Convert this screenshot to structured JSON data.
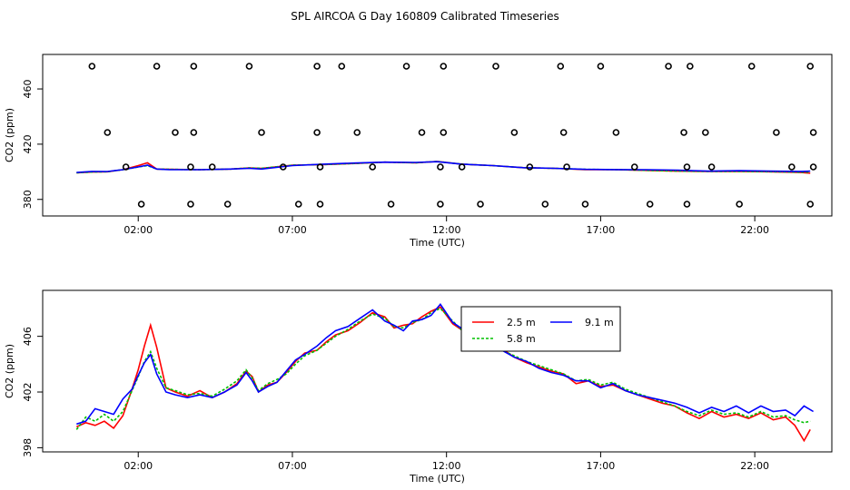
{
  "figure_title": "SPL AIRCOA G  Day 160809  Calibrated Timeseries",
  "chart_data": [
    {
      "type": "line",
      "panel": "top",
      "title": "",
      "xlabel": "Time (UTC)",
      "ylabel": "CO2 (ppm)",
      "xlim": [
        -1.1,
        24.5
      ],
      "ylim": [
        368,
        485
      ],
      "x_ticks": [
        2,
        7,
        12,
        17,
        22
      ],
      "x_tick_labels": [
        "02:00",
        "07:00",
        "12:00",
        "17:00",
        "22:00"
      ],
      "y_ticks": [
        380,
        420,
        460
      ],
      "y_tick_labels": [
        "380",
        "420",
        "460"
      ],
      "grid": false,
      "colors": {
        "2.5 m": "#ff0000",
        "5.8 m": "#00c000",
        "9.1 m": "#0000ff",
        "points": "#000000"
      },
      "series": [
        {
          "name": "2.5 m",
          "x": [
            0.0,
            0.5,
            1.0,
            1.5,
            2.0,
            2.3,
            2.6,
            3.0,
            4.0,
            5.0,
            5.6,
            6.0,
            7.0,
            8.0,
            9.0,
            10.0,
            11.0,
            11.7,
            12.5,
            13.5,
            14.5,
            15.5,
            16.5,
            17.5,
            18.5,
            19.5,
            20.5,
            21.5,
            22.5,
            23.5,
            23.8
          ],
          "y": [
            399.2,
            399.8,
            400.0,
            401.5,
            404.5,
            406.5,
            402.0,
            401.8,
            401.5,
            402.0,
            402.8,
            402.5,
            404.8,
            405.2,
            406.0,
            407.0,
            406.5,
            407.5,
            405.5,
            404.5,
            403.0,
            402.5,
            401.5,
            401.5,
            401.0,
            400.5,
            400.2,
            400.3,
            400.0,
            399.5,
            399.0
          ]
        },
        {
          "name": "5.8 m",
          "x": [
            0.0,
            0.5,
            1.0,
            1.5,
            2.0,
            2.3,
            2.6,
            3.0,
            4.0,
            5.0,
            5.6,
            6.0,
            7.0,
            8.0,
            9.0,
            10.0,
            11.0,
            11.7,
            12.5,
            13.5,
            14.5,
            15.5,
            16.5,
            17.5,
            18.5,
            19.5,
            20.5,
            21.5,
            22.5,
            23.5,
            23.8
          ],
          "y": [
            399.2,
            399.8,
            400.0,
            401.5,
            403.5,
            404.5,
            402.0,
            401.8,
            401.5,
            402.0,
            402.8,
            402.5,
            404.8,
            405.2,
            406.0,
            407.0,
            406.5,
            407.5,
            405.5,
            404.5,
            403.0,
            402.5,
            401.8,
            401.6,
            401.0,
            400.5,
            400.3,
            400.3,
            400.0,
            399.7,
            399.8
          ]
        },
        {
          "name": "9.1 m",
          "x": [
            0.0,
            0.5,
            1.0,
            1.5,
            2.0,
            2.3,
            2.6,
            3.0,
            4.0,
            5.0,
            5.6,
            6.0,
            7.0,
            8.0,
            9.0,
            10.0,
            11.0,
            11.7,
            12.5,
            13.5,
            14.5,
            15.5,
            16.5,
            17.5,
            18.5,
            19.5,
            20.5,
            21.5,
            22.5,
            23.5,
            23.8
          ],
          "y": [
            399.5,
            400.3,
            400.2,
            401.5,
            403.5,
            404.8,
            402.0,
            401.5,
            401.5,
            402.0,
            402.5,
            402.0,
            404.5,
            405.5,
            406.3,
            407.0,
            406.8,
            407.3,
            405.5,
            404.5,
            403.0,
            402.5,
            401.8,
            401.6,
            401.5,
            401.2,
            400.5,
            400.8,
            400.5,
            400.3,
            400.5
          ]
        }
      ],
      "points": {
        "x": [
          0.5,
          1.0,
          1.6,
          2.1,
          2.6,
          3.2,
          3.7,
          3.7,
          3.8,
          3.8,
          4.4,
          4.9,
          5.6,
          6.0,
          6.7,
          7.2,
          7.8,
          7.8,
          7.9,
          7.9,
          8.6,
          9.1,
          9.6,
          10.2,
          10.7,
          11.2,
          11.8,
          11.8,
          11.9,
          11.9,
          12.5,
          13.1,
          13.6,
          14.2,
          14.7,
          15.2,
          15.7,
          15.8,
          15.9,
          16.5,
          17.0,
          17.5,
          18.1,
          18.6,
          19.2,
          19.7,
          19.8,
          19.8,
          19.9,
          20.4,
          20.6,
          21.5,
          21.9,
          22.7,
          23.2,
          23.8,
          23.8,
          23.9,
          23.9
        ]
      }
    },
    {
      "type": "line",
      "panel": "bottom",
      "title": "",
      "xlabel": "Time (UTC)",
      "ylabel": "CO2 (ppm)",
      "xlim": [
        -1.1,
        24.5
      ],
      "ylim": [
        397.7,
        409.3
      ],
      "x_ticks": [
        2,
        7,
        12,
        17,
        22
      ],
      "x_tick_labels": [
        "02:00",
        "07:00",
        "12:00",
        "17:00",
        "22:00"
      ],
      "y_ticks": [
        398,
        402,
        406
      ],
      "y_tick_labels": [
        "398",
        "402",
        "406"
      ],
      "grid": false,
      "legend": {
        "position": "top-right",
        "entries": [
          "2.5 m",
          "5.8 m",
          "9.1 m"
        ]
      },
      "colors": {
        "2.5 m": "#ff0000",
        "5.8 m": "#00c000",
        "9.1 m": "#0000ff"
      },
      "series": [
        {
          "name": "2.5 m",
          "x": [
            0.0,
            0.3,
            0.6,
            0.9,
            1.2,
            1.5,
            1.8,
            2.0,
            2.2,
            2.4,
            2.6,
            2.9,
            3.2,
            3.6,
            4.0,
            4.4,
            4.8,
            5.2,
            5.5,
            5.7,
            5.9,
            6.2,
            6.5,
            6.8,
            7.1,
            7.4,
            7.8,
            8.1,
            8.4,
            8.8,
            9.2,
            9.6,
            10.0,
            10.3,
            10.6,
            10.9,
            11.2,
            11.5,
            11.8,
            12.2,
            12.6,
            13.0,
            13.4,
            13.8,
            14.2,
            14.6,
            15.0,
            15.4,
            15.8,
            16.2,
            16.6,
            17.0,
            17.4,
            17.8,
            18.2,
            18.6,
            19.0,
            19.4,
            19.8,
            20.2,
            20.6,
            21.0,
            21.4,
            21.8,
            22.2,
            22.6,
            23.0,
            23.3,
            23.6,
            23.8
          ],
          "y": [
            399.5,
            399.8,
            399.6,
            399.9,
            399.4,
            400.3,
            402.2,
            403.6,
            405.3,
            406.8,
            405.2,
            402.3,
            402.0,
            401.7,
            402.1,
            401.6,
            402.0,
            402.6,
            403.5,
            403.1,
            402.0,
            402.5,
            402.7,
            403.4,
            404.2,
            404.8,
            405.0,
            405.6,
            406.1,
            406.4,
            407.0,
            407.7,
            407.4,
            406.6,
            406.8,
            406.9,
            407.4,
            407.8,
            408.1,
            406.9,
            406.3,
            405.9,
            405.4,
            405.1,
            404.5,
            404.1,
            403.8,
            403.5,
            403.3,
            402.6,
            402.8,
            402.4,
            402.5,
            402.1,
            401.8,
            401.5,
            401.2,
            401.0,
            400.5,
            400.1,
            400.6,
            400.2,
            400.4,
            400.1,
            400.5,
            400.0,
            400.2,
            399.6,
            398.5,
            399.3
          ]
        },
        {
          "name": "5.8 m",
          "x": [
            0.0,
            0.3,
            0.6,
            0.9,
            1.2,
            1.5,
            1.8,
            2.0,
            2.2,
            2.4,
            2.6,
            2.9,
            3.2,
            3.6,
            4.0,
            4.4,
            4.8,
            5.2,
            5.5,
            5.7,
            5.9,
            6.2,
            6.5,
            6.8,
            7.1,
            7.4,
            7.8,
            8.1,
            8.4,
            8.8,
            9.2,
            9.6,
            10.0,
            10.3,
            10.6,
            10.9,
            11.2,
            11.5,
            11.8,
            12.2,
            12.6,
            13.0,
            13.4,
            13.8,
            14.2,
            14.6,
            15.0,
            15.4,
            15.8,
            16.2,
            16.6,
            17.0,
            17.4,
            17.8,
            18.2,
            18.6,
            19.0,
            19.4,
            19.8,
            20.2,
            20.6,
            21.0,
            21.4,
            21.8,
            22.2,
            22.6,
            23.0,
            23.3,
            23.6,
            23.8
          ],
          "y": [
            399.3,
            400.2,
            399.9,
            400.4,
            399.9,
            400.6,
            402.1,
            403.1,
            404.2,
            404.9,
            403.7,
            402.3,
            402.1,
            401.8,
            401.9,
            401.7,
            402.2,
            402.8,
            403.6,
            403.0,
            402.1,
            402.6,
            402.9,
            403.3,
            404.0,
            404.6,
            405.0,
            405.5,
            406.0,
            406.5,
            407.1,
            407.6,
            407.3,
            406.7,
            406.6,
            407.0,
            407.2,
            407.7,
            408.0,
            407.1,
            406.2,
            405.8,
            405.4,
            405.0,
            404.6,
            404.2,
            403.9,
            403.6,
            403.3,
            402.8,
            402.9,
            402.5,
            402.7,
            402.2,
            401.9,
            401.6,
            401.3,
            401.0,
            400.6,
            400.3,
            400.7,
            400.4,
            400.5,
            400.2,
            400.6,
            400.2,
            400.3,
            400.0,
            399.8,
            399.9
          ]
        },
        {
          "name": "9.1 m",
          "x": [
            0.0,
            0.3,
            0.6,
            0.9,
            1.2,
            1.5,
            1.8,
            2.0,
            2.2,
            2.4,
            2.6,
            2.9,
            3.2,
            3.6,
            4.0,
            4.4,
            4.8,
            5.2,
            5.5,
            5.7,
            5.9,
            6.2,
            6.5,
            6.8,
            7.1,
            7.4,
            7.8,
            8.1,
            8.4,
            8.8,
            9.2,
            9.6,
            10.0,
            10.3,
            10.6,
            10.9,
            11.2,
            11.5,
            11.8,
            12.2,
            12.6,
            13.0,
            13.4,
            13.8,
            14.2,
            14.6,
            15.0,
            15.4,
            15.8,
            16.2,
            16.6,
            17.0,
            17.4,
            17.8,
            18.2,
            18.6,
            19.0,
            19.4,
            19.8,
            20.2,
            20.6,
            21.0,
            21.4,
            21.8,
            22.2,
            22.6,
            23.0,
            23.3,
            23.6,
            23.9
          ],
          "y": [
            399.7,
            399.9,
            400.8,
            400.6,
            400.4,
            401.5,
            402.2,
            403.2,
            404.1,
            404.7,
            403.3,
            402.0,
            401.8,
            401.6,
            401.8,
            401.6,
            402.0,
            402.5,
            403.4,
            402.8,
            402.0,
            402.4,
            402.7,
            403.5,
            404.3,
            404.7,
            405.3,
            405.9,
            406.4,
            406.7,
            407.3,
            407.9,
            407.1,
            406.8,
            406.4,
            407.1,
            407.2,
            407.5,
            408.3,
            407.0,
            406.4,
            406.0,
            405.4,
            405.0,
            404.5,
            404.2,
            403.7,
            403.4,
            403.2,
            402.8,
            402.8,
            402.3,
            402.6,
            402.1,
            401.8,
            401.6,
            401.4,
            401.2,
            400.9,
            400.5,
            400.9,
            400.6,
            401.0,
            400.5,
            401.0,
            400.6,
            400.7,
            400.3,
            401.0,
            400.6
          ]
        }
      ]
    }
  ]
}
